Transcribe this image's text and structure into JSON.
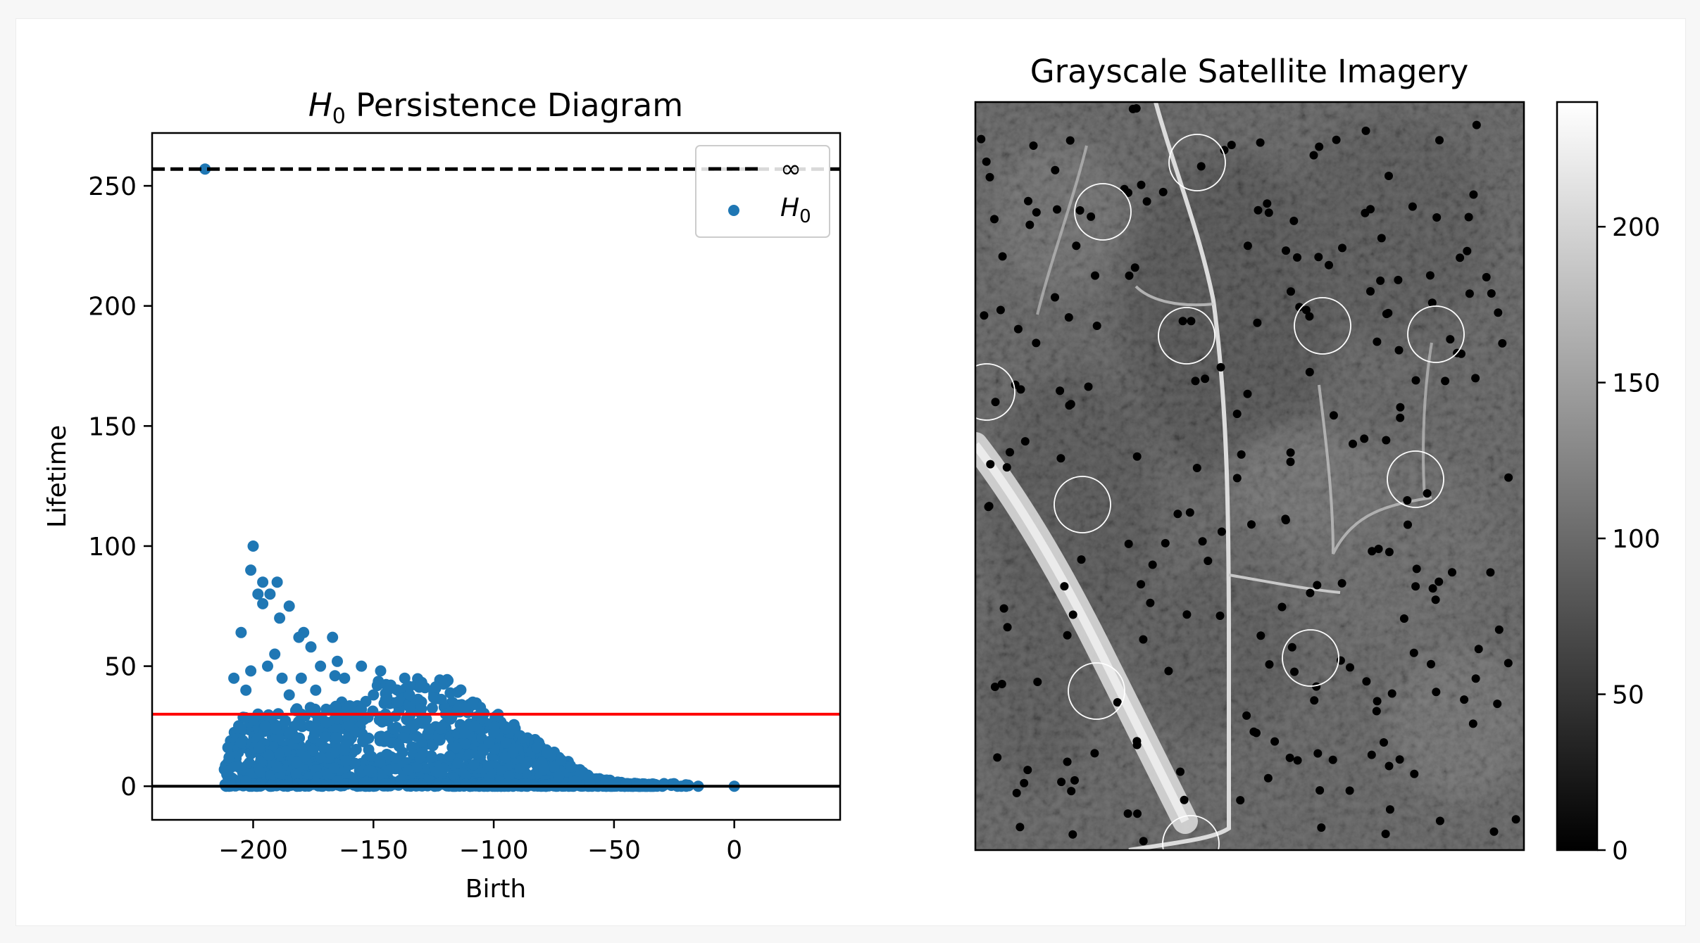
{
  "chart_data": [
    {
      "type": "scatter",
      "title": "H0 Persistence Diagram",
      "title_parts": {
        "symbol": "H",
        "subscript": "0",
        "rest": " Persistence Diagram"
      },
      "xlabel": "Birth",
      "ylabel": "Lifetime",
      "xlim": [
        -242,
        44
      ],
      "ylim": [
        -14,
        272
      ],
      "xticks": [
        -200,
        -150,
        -100,
        -50,
        0
      ],
      "xtick_labels": [
        "−200",
        "−150",
        "−100",
        "−50",
        "0"
      ],
      "yticks": [
        0,
        50,
        100,
        150,
        200,
        250
      ],
      "ytick_labels": [
        "0",
        "50",
        "100",
        "150",
        "200",
        "250"
      ],
      "grid": false,
      "legend": {
        "placement": "top-right",
        "entries": [
          {
            "label": "∞",
            "style": "dashed-line",
            "color": "#000000"
          },
          {
            "label_symbol": "H",
            "label_subscript": "0",
            "style": "marker",
            "color": "#1f77b4"
          }
        ]
      },
      "infinity_line": {
        "y": 257,
        "style": "dashed",
        "color": "#000000"
      },
      "threshold_line": {
        "y": 30,
        "color": "#ff0000"
      },
      "zero_line": {
        "y": 0,
        "color": "#000000"
      },
      "series": [
        {
          "color": "#1f77b4",
          "x": [
            -220,
            -200,
            -196,
            -201,
            -190,
            -198,
            -185,
            -193,
            -196,
            -179,
            -189,
            -181,
            -205,
            -167,
            -176,
            -191,
            -165,
            -188,
            -201,
            -194,
            -172,
            -185,
            -162,
            -208,
            -203,
            -198,
            -180,
            -193,
            -166,
            -155,
            -174,
            -147,
            -180,
            -150,
            -160,
            -158,
            -137,
            -130,
            -125,
            -140,
            -145,
            -135,
            -128,
            -120,
            -118,
            -110,
            -108,
            -115,
            -100,
            -105,
            -95,
            -90,
            -85,
            -80,
            -75,
            -70,
            -65,
            -60,
            -55,
            -52,
            -48,
            -45,
            -40,
            -35,
            -25,
            -22,
            -20,
            -15,
            0,
            -210,
            -205,
            -195,
            -185,
            -175,
            -165,
            -155,
            -145,
            -135,
            -125,
            -115,
            -105,
            -95,
            -88,
            -82,
            -78,
            -72,
            -68,
            -62,
            -58,
            -210,
            -203,
            -197,
            -190,
            -182,
            -172,
            -162,
            -152,
            -142,
            -132,
            -122,
            -112,
            -102,
            -92,
            -86,
            -79,
            -73,
            -66,
            -60
          ],
          "y": [
            257,
            100,
            85,
            90,
            85,
            80,
            75,
            80,
            76,
            64,
            70,
            62,
            64,
            62,
            58,
            55,
            52,
            45,
            48,
            50,
            50,
            38,
            45,
            45,
            40,
            30,
            45,
            28,
            46,
            50,
            40,
            48,
            30,
            38,
            25,
            33,
            45,
            42,
            40,
            35,
            30,
            33,
            28,
            30,
            28,
            26,
            25,
            22,
            22,
            20,
            18,
            15,
            12,
            10,
            8,
            6,
            4,
            3,
            2,
            1,
            1,
            1,
            0,
            0,
            1,
            0,
            0,
            0,
            0,
            12,
            18,
            25,
            22,
            20,
            28,
            32,
            36,
            38,
            37,
            32,
            28,
            24,
            20,
            16,
            14,
            11,
            8,
            5,
            3,
            0,
            2,
            6,
            8,
            10,
            12,
            15,
            20,
            24,
            26,
            24,
            22,
            18,
            14,
            10,
            7,
            4,
            2,
            1
          ]
        }
      ]
    },
    {
      "type": "heatmap",
      "title": "Grayscale Satellite Imagery",
      "colormap": "gray",
      "colorbar": {
        "range": [
          0,
          240
        ],
        "ticks": [
          0,
          50,
          100,
          150,
          200
        ],
        "tick_labels": [
          "0",
          "50",
          "100",
          "150",
          "200"
        ]
      },
      "marked_points_count": 14
    }
  ],
  "colors": {
    "h0_points": "#1f77b4",
    "threshold": "#ff0000",
    "axis": "#000000"
  }
}
